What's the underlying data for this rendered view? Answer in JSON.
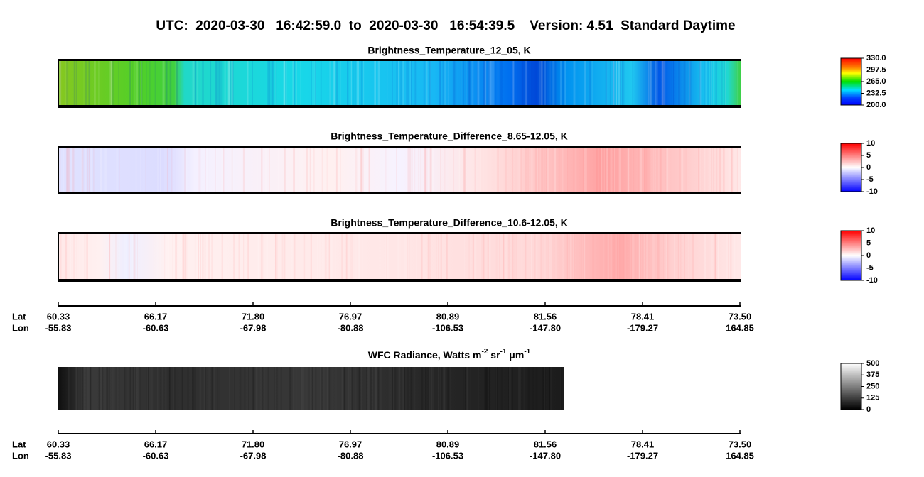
{
  "title": "UTC:  2020-03-30   16:42:59.0  to  2020-03-30   16:54:39.5    Version: 4.51  Standard Daytime",
  "chart_data": [
    {
      "type": "image",
      "title": "Brightness_Temperature_12_05, K",
      "colorbar": {
        "lim": [
          200,
          330
        ],
        "ticks": [
          {
            "value": 330,
            "label": "330.0"
          },
          {
            "value": 297.5,
            "label": "297.5"
          },
          {
            "value": 265,
            "label": "265.0"
          },
          {
            "value": 232.5,
            "label": "232.5"
          },
          {
            "value": 200,
            "label": "200.0"
          }
        ]
      }
    },
    {
      "type": "image",
      "title": "Brightness_Temperature_Difference_8.65-12.05, K",
      "colorbar": {
        "lim": [
          -10,
          10
        ],
        "ticks": [
          10,
          5,
          0,
          -5,
          -10
        ]
      }
    },
    {
      "type": "image",
      "title": "Brightness_Temperature_Difference_10.6-12.05, K",
      "colorbar": {
        "lim": [
          -10,
          10
        ],
        "ticks": [
          10,
          5,
          0,
          -5,
          -10
        ]
      }
    },
    {
      "type": "image",
      "title_parts": [
        "WFC Radiance, Watts m",
        "-2",
        " sr",
        "-1",
        " μm",
        "-1"
      ],
      "colorbar": {
        "lim": [
          0,
          500
        ],
        "ticks": [
          500,
          375,
          250,
          125,
          0
        ]
      }
    }
  ],
  "track_axes": [
    {
      "row_labels": [
        "Lat",
        "Lon"
      ],
      "lat": [
        "60.33",
        "66.17",
        "71.80",
        "76.97",
        "80.89",
        "81.56",
        "78.41",
        "73.50"
      ],
      "lon": [
        "-55.83",
        "-60.63",
        "-67.98",
        "-80.88",
        "-106.53",
        "-147.80",
        "-179.27",
        "164.85"
      ]
    },
    {
      "row_labels": [
        "Lat",
        "Lon"
      ],
      "lat": [
        "60.33",
        "66.17",
        "71.80",
        "76.97",
        "80.89",
        "81.56",
        "78.41",
        "73.50"
      ],
      "lon": [
        "-55.83",
        "-60.63",
        "-67.98",
        "-80.88",
        "-106.53",
        "-147.80",
        "-179.27",
        "164.85"
      ]
    }
  ]
}
